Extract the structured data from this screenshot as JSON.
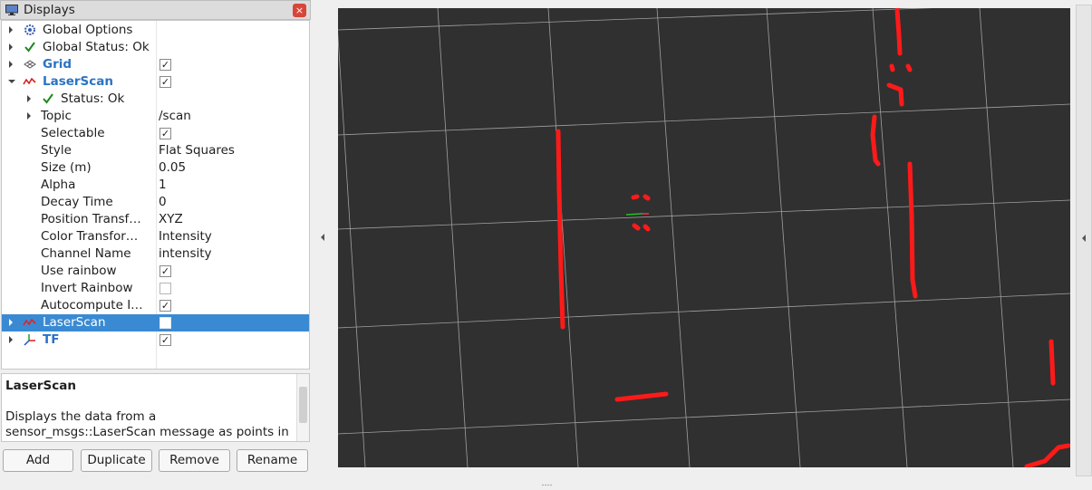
{
  "panel": {
    "title": "Displays",
    "close_label": "×"
  },
  "tree": {
    "rows": [
      {
        "label": "Global Options"
      },
      {
        "label": "Global Status: Ok"
      },
      {
        "label": "Grid",
        "checked": true
      },
      {
        "label": "LaserScan",
        "checked": true
      },
      {
        "label": "Status: Ok"
      },
      {
        "label": "Topic",
        "value": "/scan"
      },
      {
        "label": "Selectable",
        "checked": true
      },
      {
        "label": "Style",
        "value": "Flat Squares"
      },
      {
        "label": "Size (m)",
        "value": "0.05"
      },
      {
        "label": "Alpha",
        "value": "1"
      },
      {
        "label": "Decay Time",
        "value": "0"
      },
      {
        "label": "Position Transf…",
        "value": "XYZ"
      },
      {
        "label": "Color Transfor…",
        "value": "Intensity"
      },
      {
        "label": "Channel Name",
        "value": "intensity"
      },
      {
        "label": "Use rainbow",
        "checked": true
      },
      {
        "label": "Invert Rainbow",
        "checked": false
      },
      {
        "label": "Autocompute I…",
        "checked": true
      },
      {
        "label": "LaserScan",
        "checked": false,
        "selected": true
      },
      {
        "label": "TF",
        "checked": true
      }
    ]
  },
  "description": {
    "title": "LaserScan",
    "text": "Displays the data from a sensor_msgs::LaserScan message as points in the world, drawn as points, billboards, or cubes."
  },
  "buttons": {
    "add": "Add",
    "duplicate": "Duplicate",
    "remove": "Remove",
    "rename": "Rename"
  },
  "colors": {
    "viewport_bg": "#303030",
    "grid": "#a0a0a0",
    "scan": "#ff1a1a",
    "selection": "#3a8ad3",
    "display_blue": "#2a73c4"
  },
  "icons": {
    "panel": "monitor-icon",
    "global_options": "gear-icon",
    "status_ok": "checkmark-icon",
    "grid": "grid-icon",
    "laserscan": "laserscan-icon",
    "tf": "axes-icon"
  }
}
